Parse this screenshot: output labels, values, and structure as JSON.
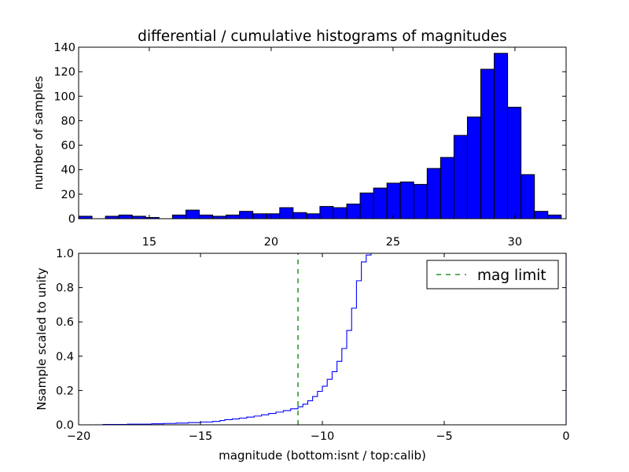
{
  "chart_data": [
    {
      "type": "bar",
      "title": "differential / cumulative histograms of magnitudes",
      "xlabel": "",
      "ylabel": "number of samples",
      "xlim": [
        12.1,
        32.1
      ],
      "ylim": [
        0,
        140
      ],
      "bin_width": 0.55,
      "bar_color": "#0000ff",
      "x_ticks": [
        15,
        20,
        25,
        30
      ],
      "y_ticks": [
        0,
        20,
        40,
        60,
        80,
        100,
        120,
        140
      ],
      "bins": [
        {
          "left": 12.1,
          "count": 2
        },
        {
          "left": 12.65,
          "count": 0
        },
        {
          "left": 13.2,
          "count": 2
        },
        {
          "left": 13.75,
          "count": 3
        },
        {
          "left": 14.3,
          "count": 2
        },
        {
          "left": 14.85,
          "count": 1
        },
        {
          "left": 15.4,
          "count": 0
        },
        {
          "left": 15.95,
          "count": 3
        },
        {
          "left": 16.5,
          "count": 7
        },
        {
          "left": 17.05,
          "count": 3
        },
        {
          "left": 17.6,
          "count": 2
        },
        {
          "left": 18.15,
          "count": 3
        },
        {
          "left": 18.7,
          "count": 6
        },
        {
          "left": 19.25,
          "count": 4
        },
        {
          "left": 19.8,
          "count": 4
        },
        {
          "left": 20.35,
          "count": 9
        },
        {
          "left": 20.9,
          "count": 5
        },
        {
          "left": 21.45,
          "count": 4
        },
        {
          "left": 22.0,
          "count": 10
        },
        {
          "left": 22.55,
          "count": 9
        },
        {
          "left": 23.1,
          "count": 12
        },
        {
          "left": 23.65,
          "count": 21
        },
        {
          "left": 24.2,
          "count": 25
        },
        {
          "left": 24.75,
          "count": 29
        },
        {
          "left": 25.3,
          "count": 30
        },
        {
          "left": 25.85,
          "count": 28
        },
        {
          "left": 26.4,
          "count": 41
        },
        {
          "left": 26.95,
          "count": 50
        },
        {
          "left": 27.5,
          "count": 68
        },
        {
          "left": 28.05,
          "count": 83
        },
        {
          "left": 28.6,
          "count": 122
        },
        {
          "left": 29.15,
          "count": 135
        },
        {
          "left": 29.7,
          "count": 91
        },
        {
          "left": 30.25,
          "count": 36
        },
        {
          "left": 30.8,
          "count": 6
        },
        {
          "left": 31.35,
          "count": 3
        },
        {
          "left": 31.9,
          "count": 0
        }
      ]
    },
    {
      "type": "line",
      "title": "",
      "xlabel": "magnitude (bottom:isnt / top:calib)",
      "ylabel": "Nsample scaled to unity",
      "xlim": [
        -20,
        0
      ],
      "ylim": [
        0,
        1.0
      ],
      "x_ticks": [
        -20,
        -15,
        -10,
        -5,
        0
      ],
      "x_tick_labels": [
        "−20",
        "−15",
        "−10",
        "−5",
        "0"
      ],
      "y_ticks": [
        0.0,
        0.2,
        0.4,
        0.6,
        0.8,
        1.0
      ],
      "y_tick_labels": [
        "0.0",
        "0.2",
        "0.4",
        "0.6",
        "0.8",
        "1.0"
      ],
      "series": [
        {
          "name": "",
          "style": "step",
          "color": "#0000ff",
          "x": [
            -20,
            -19,
            -18,
            -17,
            -16.5,
            -16,
            -15.5,
            -15,
            -14.5,
            -14.2,
            -14,
            -13.7,
            -13.4,
            -13.1,
            -12.8,
            -12.5,
            -12.2,
            -11.9,
            -11.6,
            -11.3,
            -11.0,
            -10.8,
            -10.6,
            -10.4,
            -10.2,
            -10.0,
            -9.8,
            -9.6,
            -9.4,
            -9.2,
            -9.0,
            -8.8,
            -8.6,
            -8.4,
            -8.2,
            -8.0,
            -7.8,
            -7.6,
            -7.3,
            0
          ],
          "y": [
            0.0,
            0.002,
            0.004,
            0.006,
            0.008,
            0.01,
            0.013,
            0.016,
            0.02,
            0.025,
            0.03,
            0.034,
            0.039,
            0.045,
            0.051,
            0.058,
            0.066,
            0.074,
            0.083,
            0.093,
            0.105,
            0.12,
            0.14,
            0.165,
            0.195,
            0.225,
            0.265,
            0.31,
            0.37,
            0.445,
            0.55,
            0.68,
            0.84,
            0.95,
            0.99,
            1.0,
            1.0,
            1.0,
            1.0,
            1.0
          ]
        },
        {
          "name": "mag limit",
          "style": "dashed-vertical",
          "color": "#008000",
          "x": [
            -11,
            -11
          ],
          "y": [
            0,
            1.0
          ]
        }
      ],
      "legend": {
        "placement": "top-right",
        "entries": [
          "mag limit"
        ]
      }
    }
  ]
}
